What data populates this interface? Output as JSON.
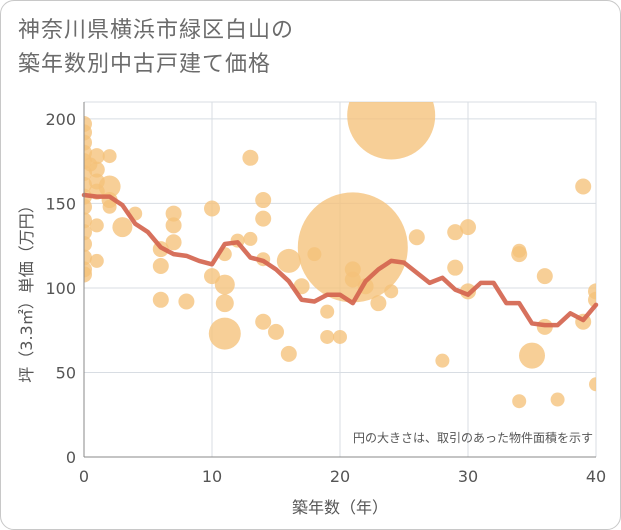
{
  "chart_data": {
    "type": "scatter",
    "title_line1": "神奈川県横浜市緑区白山の",
    "title_line2": "築年数別中古戸建て価格",
    "xlabel": "築年数（年）",
    "ylabel": "坪（3.3㎡）単価（万円）",
    "note": "円の大きさは、取引のあった物件面積を示す",
    "xlim": [
      0,
      40
    ],
    "ylim": [
      0,
      210
    ],
    "xticks": [
      0,
      10,
      20,
      30,
      40
    ],
    "yticks": [
      0,
      50,
      100,
      150,
      200
    ],
    "colors": {
      "bubble": "#f5c27a",
      "line": "#d4654f",
      "grid": "#d8dde3",
      "axis": "#888888"
    },
    "bubbles": [
      {
        "x": 0,
        "y": 197,
        "s": 8
      },
      {
        "x": 0,
        "y": 192,
        "s": 8
      },
      {
        "x": 0,
        "y": 186,
        "s": 8
      },
      {
        "x": 0,
        "y": 180,
        "s": 8
      },
      {
        "x": 0,
        "y": 175,
        "s": 8
      },
      {
        "x": 0,
        "y": 168,
        "s": 8
      },
      {
        "x": 0,
        "y": 161,
        "s": 8
      },
      {
        "x": 0,
        "y": 154,
        "s": 8
      },
      {
        "x": 0,
        "y": 148,
        "s": 8
      },
      {
        "x": 0,
        "y": 140,
        "s": 8
      },
      {
        "x": 0,
        "y": 133,
        "s": 8
      },
      {
        "x": 0,
        "y": 126,
        "s": 8
      },
      {
        "x": 0,
        "y": 118,
        "s": 8
      },
      {
        "x": 0,
        "y": 111,
        "s": 8
      },
      {
        "x": 0,
        "y": 108,
        "s": 8
      },
      {
        "x": 0.5,
        "y": 173,
        "s": 7
      },
      {
        "x": 1,
        "y": 178,
        "s": 8
      },
      {
        "x": 1,
        "y": 170,
        "s": 8
      },
      {
        "x": 1,
        "y": 163,
        "s": 8
      },
      {
        "x": 1,
        "y": 157,
        "s": 8
      },
      {
        "x": 1,
        "y": 137,
        "s": 7
      },
      {
        "x": 1,
        "y": 116,
        "s": 7
      },
      {
        "x": 2,
        "y": 178,
        "s": 7
      },
      {
        "x": 2,
        "y": 160,
        "s": 11
      },
      {
        "x": 2,
        "y": 152,
        "s": 8
      },
      {
        "x": 2,
        "y": 148,
        "s": 7
      },
      {
        "x": 3,
        "y": 136,
        "s": 10
      },
      {
        "x": 4,
        "y": 144,
        "s": 7
      },
      {
        "x": 6,
        "y": 123,
        "s": 8
      },
      {
        "x": 6,
        "y": 113,
        "s": 8
      },
      {
        "x": 6,
        "y": 93,
        "s": 8
      },
      {
        "x": 7,
        "y": 144,
        "s": 8
      },
      {
        "x": 7,
        "y": 137,
        "s": 8
      },
      {
        "x": 7,
        "y": 127,
        "s": 8
      },
      {
        "x": 8,
        "y": 92,
        "s": 8
      },
      {
        "x": 10,
        "y": 147,
        "s": 8
      },
      {
        "x": 10,
        "y": 107,
        "s": 8
      },
      {
        "x": 11,
        "y": 120,
        "s": 7
      },
      {
        "x": 11,
        "y": 102,
        "s": 10
      },
      {
        "x": 11,
        "y": 91,
        "s": 9
      },
      {
        "x": 11,
        "y": 73,
        "s": 16
      },
      {
        "x": 12,
        "y": 128,
        "s": 7
      },
      {
        "x": 13,
        "y": 177,
        "s": 8
      },
      {
        "x": 13,
        "y": 129,
        "s": 7
      },
      {
        "x": 14,
        "y": 152,
        "s": 8
      },
      {
        "x": 14,
        "y": 141,
        "s": 8
      },
      {
        "x": 14,
        "y": 117,
        "s": 7
      },
      {
        "x": 14,
        "y": 80,
        "s": 8
      },
      {
        "x": 15,
        "y": 74,
        "s": 8
      },
      {
        "x": 16,
        "y": 116,
        "s": 12
      },
      {
        "x": 16,
        "y": 61,
        "s": 8
      },
      {
        "x": 17,
        "y": 101,
        "s": 8
      },
      {
        "x": 18,
        "y": 120,
        "s": 7
      },
      {
        "x": 19,
        "y": 86,
        "s": 7
      },
      {
        "x": 19,
        "y": 71,
        "s": 7
      },
      {
        "x": 20,
        "y": 71,
        "s": 7
      },
      {
        "x": 21,
        "y": 124,
        "s": 55
      },
      {
        "x": 21,
        "y": 111,
        "s": 8
      },
      {
        "x": 21,
        "y": 105,
        "s": 8
      },
      {
        "x": 22,
        "y": 101,
        "s": 8
      },
      {
        "x": 23,
        "y": 91,
        "s": 8
      },
      {
        "x": 24,
        "y": 98,
        "s": 7
      },
      {
        "x": 24,
        "y": 202,
        "s": 44
      },
      {
        "x": 26,
        "y": 130,
        "s": 8
      },
      {
        "x": 28,
        "y": 57,
        "s": 7
      },
      {
        "x": 29,
        "y": 133,
        "s": 8
      },
      {
        "x": 29,
        "y": 112,
        "s": 8
      },
      {
        "x": 30,
        "y": 136,
        "s": 8
      },
      {
        "x": 30,
        "y": 98,
        "s": 8
      },
      {
        "x": 34,
        "y": 122,
        "s": 7
      },
      {
        "x": 34,
        "y": 120,
        "s": 8
      },
      {
        "x": 34,
        "y": 33,
        "s": 7
      },
      {
        "x": 35,
        "y": 60,
        "s": 13
      },
      {
        "x": 36,
        "y": 107,
        "s": 8
      },
      {
        "x": 36,
        "y": 77,
        "s": 8
      },
      {
        "x": 37,
        "y": 34,
        "s": 7
      },
      {
        "x": 39,
        "y": 160,
        "s": 8
      },
      {
        "x": 39,
        "y": 80,
        "s": 8
      },
      {
        "x": 40,
        "y": 98,
        "s": 8
      },
      {
        "x": 40,
        "y": 93,
        "s": 8
      },
      {
        "x": 40,
        "y": 43,
        "s": 7
      }
    ],
    "trend": {
      "x": [
        0,
        1,
        2,
        3,
        4,
        5,
        6,
        7,
        8,
        9,
        10,
        11,
        12,
        13,
        14,
        15,
        16,
        17,
        18,
        19,
        20,
        21,
        22,
        23,
        24,
        25,
        26,
        27,
        28,
        29,
        30,
        31,
        32,
        33,
        34,
        35,
        36,
        37,
        38,
        39,
        40
      ],
      "y": [
        155,
        154,
        154,
        149,
        138,
        133,
        124,
        120,
        119,
        116,
        114,
        126,
        127,
        118,
        116,
        111,
        104,
        93,
        92,
        96,
        96,
        91,
        104,
        111,
        116,
        115,
        109,
        103,
        106,
        99,
        96,
        103,
        103,
        91,
        91,
        79,
        78,
        78,
        85,
        81,
        90
      ]
    }
  }
}
